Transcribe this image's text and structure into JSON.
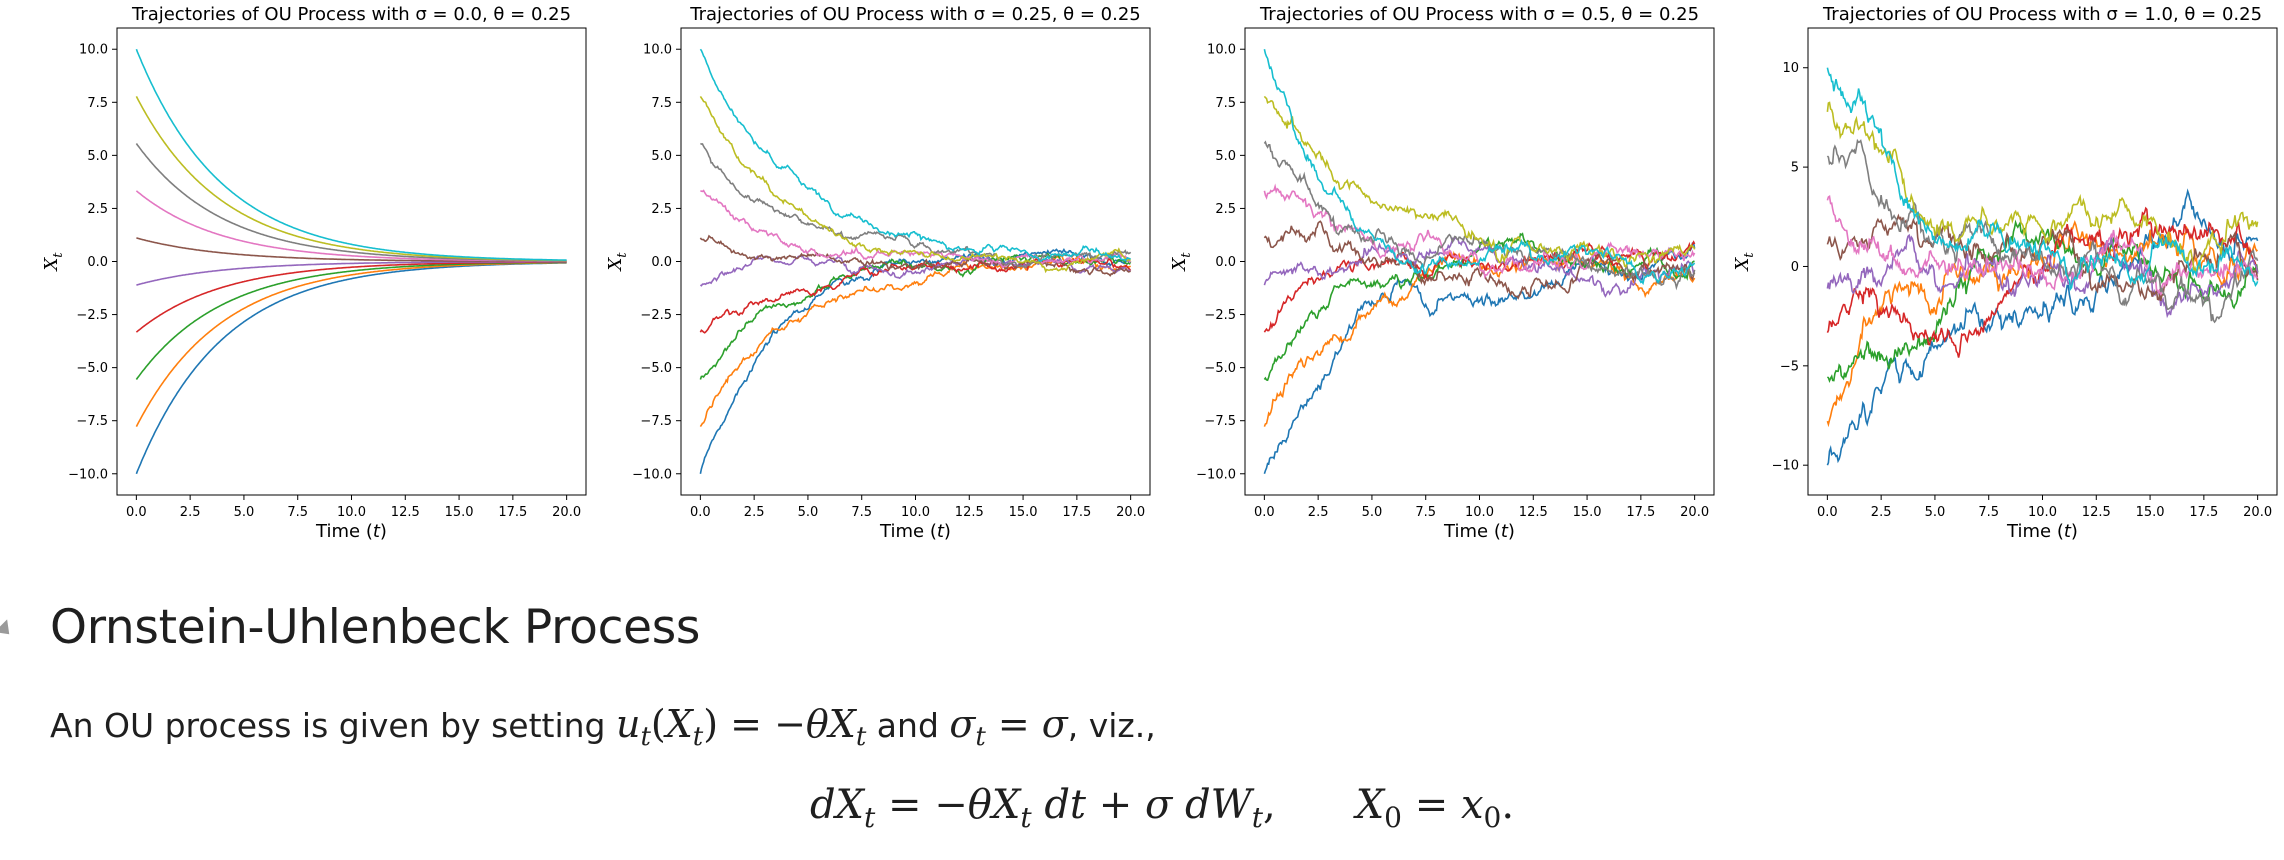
{
  "chart_data": [
    {
      "type": "line",
      "title": "Trajectories of OU Process with σ = 0.0, θ = 0.25",
      "sigma": 0.0,
      "theta": 0.25,
      "xlabel": "Time (t)",
      "ylabel": "X_t",
      "xlim": [
        0,
        20
      ],
      "ylim": [
        -11,
        11
      ],
      "xticks": [
        0.0,
        2.5,
        5.0,
        7.5,
        10.0,
        12.5,
        15.0,
        17.5,
        20.0
      ],
      "xtick_labels": [
        "0.0",
        "2.5",
        "5.0",
        "7.5",
        "10.0",
        "12.5",
        "15.0",
        "17.5",
        "20.0"
      ],
      "yticks": [
        -10.0,
        -7.5,
        -5.0,
        -2.5,
        0.0,
        2.5,
        5.0,
        7.5,
        10.0
      ],
      "ytick_labels": [
        "−10.0",
        "−7.5",
        "−5.0",
        "−2.5",
        "0.0",
        "2.5",
        "5.0",
        "7.5",
        "10.0"
      ],
      "series": [
        {
          "name": "x0=-10.0",
          "x0": -10.0,
          "color": "#1f77b4"
        },
        {
          "name": "x0=-7.78",
          "x0": -7.78,
          "color": "#ff7f0e"
        },
        {
          "name": "x0=-5.56",
          "x0": -5.56,
          "color": "#2ca02c"
        },
        {
          "name": "x0=-3.33",
          "x0": -3.33,
          "color": "#d62728"
        },
        {
          "name": "x0=-1.11",
          "x0": -1.11,
          "color": "#9467bd"
        },
        {
          "name": "x0=1.11",
          "x0": 1.11,
          "color": "#8c564b"
        },
        {
          "name": "x0=3.33",
          "x0": 3.33,
          "color": "#e377c2"
        },
        {
          "name": "x0=5.56",
          "x0": 5.56,
          "color": "#7f7f7f"
        },
        {
          "name": "x0=7.78",
          "x0": 7.78,
          "color": "#bcbd22"
        },
        {
          "name": "x0=10.0",
          "x0": 10.0,
          "color": "#17becf"
        }
      ]
    },
    {
      "type": "line",
      "title": "Trajectories of OU Process with σ = 0.25, θ = 0.25",
      "sigma": 0.25,
      "theta": 0.25,
      "xlabel": "Time (t)",
      "ylabel": "X_t",
      "xlim": [
        0,
        20
      ],
      "ylim": [
        -11,
        11
      ],
      "xticks": [
        0.0,
        2.5,
        5.0,
        7.5,
        10.0,
        12.5,
        15.0,
        17.5,
        20.0
      ],
      "xtick_labels": [
        "0.0",
        "2.5",
        "5.0",
        "7.5",
        "10.0",
        "12.5",
        "15.0",
        "17.5",
        "20.0"
      ],
      "yticks": [
        -10.0,
        -7.5,
        -5.0,
        -2.5,
        0.0,
        2.5,
        5.0,
        7.5,
        10.0
      ],
      "ytick_labels": [
        "−10.0",
        "−7.5",
        "−5.0",
        "−2.5",
        "0.0",
        "2.5",
        "5.0",
        "7.5",
        "10.0"
      ],
      "series": [
        {
          "name": "x0=-10.0",
          "x0": -10.0,
          "color": "#1f77b4"
        },
        {
          "name": "x0=-7.78",
          "x0": -7.78,
          "color": "#ff7f0e"
        },
        {
          "name": "x0=-5.56",
          "x0": -5.56,
          "color": "#2ca02c"
        },
        {
          "name": "x0=-3.33",
          "x0": -3.33,
          "color": "#d62728"
        },
        {
          "name": "x0=-1.11",
          "x0": -1.11,
          "color": "#9467bd"
        },
        {
          "name": "x0=1.11",
          "x0": 1.11,
          "color": "#8c564b"
        },
        {
          "name": "x0=3.33",
          "x0": 3.33,
          "color": "#e377c2"
        },
        {
          "name": "x0=5.56",
          "x0": 5.56,
          "color": "#7f7f7f"
        },
        {
          "name": "x0=7.78",
          "x0": 7.78,
          "color": "#bcbd22"
        },
        {
          "name": "x0=10.0",
          "x0": 10.0,
          "color": "#17becf"
        }
      ]
    },
    {
      "type": "line",
      "title": "Trajectories of OU Process with σ = 0.5, θ = 0.25",
      "sigma": 0.5,
      "theta": 0.25,
      "xlabel": "Time (t)",
      "ylabel": "X_t",
      "xlim": [
        0,
        20
      ],
      "ylim": [
        -11,
        11
      ],
      "xticks": [
        0.0,
        2.5,
        5.0,
        7.5,
        10.0,
        12.5,
        15.0,
        17.5,
        20.0
      ],
      "xtick_labels": [
        "0.0",
        "2.5",
        "5.0",
        "7.5",
        "10.0",
        "12.5",
        "15.0",
        "17.5",
        "20.0"
      ],
      "yticks": [
        -10.0,
        -7.5,
        -5.0,
        -2.5,
        0.0,
        2.5,
        5.0,
        7.5,
        10.0
      ],
      "ytick_labels": [
        "−10.0",
        "−7.5",
        "−5.0",
        "−2.5",
        "0.0",
        "2.5",
        "5.0",
        "7.5",
        "10.0"
      ],
      "series": [
        {
          "name": "x0=-10.0",
          "x0": -10.0,
          "color": "#1f77b4"
        },
        {
          "name": "x0=-7.78",
          "x0": -7.78,
          "color": "#ff7f0e"
        },
        {
          "name": "x0=-5.56",
          "x0": -5.56,
          "color": "#2ca02c"
        },
        {
          "name": "x0=-3.33",
          "x0": -3.33,
          "color": "#d62728"
        },
        {
          "name": "x0=-1.11",
          "x0": -1.11,
          "color": "#9467bd"
        },
        {
          "name": "x0=1.11",
          "x0": 1.11,
          "color": "#8c564b"
        },
        {
          "name": "x0=3.33",
          "x0": 3.33,
          "color": "#e377c2"
        },
        {
          "name": "x0=5.56",
          "x0": 5.56,
          "color": "#7f7f7f"
        },
        {
          "name": "x0=7.78",
          "x0": 7.78,
          "color": "#bcbd22"
        },
        {
          "name": "x0=10.0",
          "x0": 10.0,
          "color": "#17becf"
        }
      ]
    },
    {
      "type": "line",
      "title": "Trajectories of OU Process with σ = 1.0, θ = 0.25",
      "sigma": 1.0,
      "theta": 0.25,
      "xlabel": "Time (t)",
      "ylabel": "X_t",
      "xlim": [
        0,
        20
      ],
      "ylim": [
        -11.5,
        12
      ],
      "xticks": [
        0.0,
        2.5,
        5.0,
        7.5,
        10.0,
        12.5,
        15.0,
        17.5,
        20.0
      ],
      "xtick_labels": [
        "0.0",
        "2.5",
        "5.0",
        "7.5",
        "10.0",
        "12.5",
        "15.0",
        "17.5",
        "20.0"
      ],
      "yticks": [
        -10,
        -5,
        0,
        5,
        10
      ],
      "ytick_labels": [
        "−10",
        "−5",
        "0",
        "5",
        "10"
      ],
      "series": [
        {
          "name": "x0=-10.0",
          "x0": -10.0,
          "color": "#1f77b4"
        },
        {
          "name": "x0=-7.78",
          "x0": -7.78,
          "color": "#ff7f0e"
        },
        {
          "name": "x0=-5.56",
          "x0": -5.56,
          "color": "#2ca02c"
        },
        {
          "name": "x0=-3.33",
          "x0": -3.33,
          "color": "#d62728"
        },
        {
          "name": "x0=-1.11",
          "x0": -1.11,
          "color": "#9467bd"
        },
        {
          "name": "x0=1.11",
          "x0": 1.11,
          "color": "#8c564b"
        },
        {
          "name": "x0=3.33",
          "x0": 3.33,
          "color": "#e377c2"
        },
        {
          "name": "x0=5.56",
          "x0": 5.56,
          "color": "#7f7f7f"
        },
        {
          "name": "x0=7.78",
          "x0": 7.78,
          "color": "#bcbd22"
        },
        {
          "name": "x0=10.0",
          "x0": 10.0,
          "color": "#17becf"
        }
      ]
    }
  ],
  "markdown": {
    "heading": "Ornstein-Uhlenbeck Process",
    "para_intro": "An OU process is given by setting ",
    "para_and": " and ",
    "para_end": ", viz.,"
  }
}
